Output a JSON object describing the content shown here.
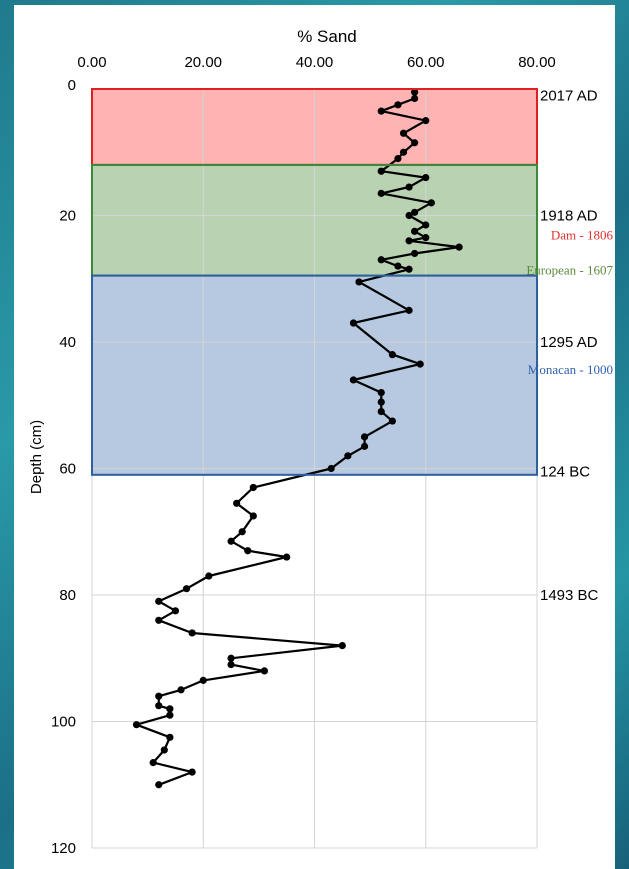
{
  "chart_data": {
    "type": "line",
    "title": "% Sand",
    "ylabel": "Depth (cm)",
    "xlabel": "",
    "xlim": [
      0,
      80
    ],
    "ylim": [
      0,
      120
    ],
    "y_inverted": true,
    "x_axis_position": "top",
    "x_ticks": [
      "0.00",
      "20.00",
      "40.00",
      "60.00",
      "80.00"
    ],
    "y_ticks": [
      "0",
      "20",
      "40",
      "60",
      "80",
      "100",
      "120"
    ],
    "grid": true,
    "line_color": "#000000",
    "series": [
      {
        "points": [
          [
            58,
            0.5
          ],
          [
            58,
            1.5
          ],
          [
            55,
            2.5
          ],
          [
            52,
            3.5
          ],
          [
            60,
            5
          ],
          [
            56,
            7
          ],
          [
            58,
            8.5
          ],
          [
            56,
            10
          ],
          [
            55,
            11
          ],
          [
            52,
            13
          ],
          [
            60,
            14
          ],
          [
            57,
            15.5
          ],
          [
            52,
            16.5
          ],
          [
            61,
            18
          ],
          [
            58,
            19.5
          ],
          [
            57,
            20
          ],
          [
            60,
            21.5
          ],
          [
            58,
            22.5
          ],
          [
            60,
            23.5
          ],
          [
            57,
            24
          ],
          [
            66,
            25
          ],
          [
            58,
            26
          ],
          [
            52,
            27
          ],
          [
            55,
            28
          ],
          [
            57,
            28.5
          ],
          [
            48,
            30.5
          ],
          [
            57,
            35
          ],
          [
            47,
            37
          ],
          [
            54,
            42
          ],
          [
            59,
            43.5
          ],
          [
            47,
            46
          ],
          [
            52,
            48
          ],
          [
            52,
            49.5
          ],
          [
            52,
            51
          ],
          [
            54,
            52.5
          ],
          [
            49,
            55
          ],
          [
            49,
            56.5
          ],
          [
            46,
            58
          ],
          [
            43,
            60
          ],
          [
            29,
            63
          ],
          [
            26,
            65.5
          ],
          [
            29,
            67.5
          ],
          [
            27,
            70
          ],
          [
            25,
            71.5
          ],
          [
            28,
            73
          ],
          [
            35,
            74
          ],
          [
            21,
            77
          ],
          [
            17,
            79
          ],
          [
            12,
            81
          ],
          [
            15,
            82.5
          ],
          [
            12,
            84
          ],
          [
            18,
            86
          ],
          [
            45,
            88
          ],
          [
            25,
            90
          ],
          [
            25,
            91
          ],
          [
            31,
            92
          ],
          [
            20,
            93.5
          ],
          [
            16,
            95
          ],
          [
            12,
            96
          ],
          [
            12,
            97.5
          ],
          [
            14,
            98
          ],
          [
            14,
            99
          ],
          [
            8,
            100.5
          ],
          [
            14,
            102.5
          ],
          [
            13,
            104.5
          ],
          [
            11,
            106.5
          ],
          [
            18,
            108
          ],
          [
            12,
            110
          ]
        ]
      }
    ],
    "zones": [
      {
        "from": 0,
        "to": 12,
        "fill": "#ffb3b3",
        "stroke": "#e0201f"
      },
      {
        "from": 12,
        "to": 29.5,
        "fill": "#b8d2b2",
        "stroke": "#3b8a3b"
      },
      {
        "from": 29.5,
        "to": 61,
        "fill": "#b6c9e0",
        "stroke": "#2e5f9e"
      }
    ],
    "date_labels": [
      {
        "depth": 1,
        "text": "2017 AD"
      },
      {
        "depth": 20,
        "text": "1918 AD"
      },
      {
        "depth": 40,
        "text": "1295 AD"
      },
      {
        "depth": 60.5,
        "text": "124 BC"
      },
      {
        "depth": 80,
        "text": "1493 BC"
      }
    ],
    "event_labels": [
      {
        "depth": 23.2,
        "text": "Dam - 1806",
        "color": "#e03030"
      },
      {
        "depth": 28.7,
        "text": "European - 1607",
        "color": "#5a8a3a"
      },
      {
        "depth": 44.4,
        "text": "Monacan - 1000",
        "color": "#2e5fae"
      }
    ]
  }
}
